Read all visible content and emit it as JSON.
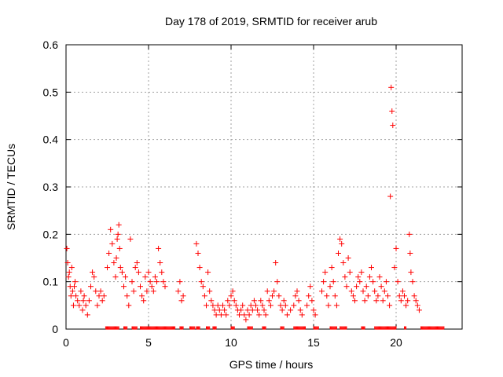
{
  "chart_data": {
    "type": "scatter",
    "title": "Day 178 of 2019, SRMTID for receiver arub",
    "xlabel": "GPS time / hours",
    "ylabel": "SRMTID / TECUs",
    "xlim": [
      0,
      24
    ],
    "ylim": [
      0,
      0.6
    ],
    "xticks": [
      0,
      5,
      10,
      15,
      20
    ],
    "xtick_labels": [
      "0",
      "5",
      "10",
      "15",
      "20"
    ],
    "yticks": [
      0,
      0.1,
      0.2,
      0.3,
      0.4,
      0.5,
      0.6
    ],
    "ytick_labels": [
      "0",
      "0.1",
      "0.2",
      "0.3",
      "0.4",
      "0.5",
      "0.6"
    ],
    "grid": true,
    "marker": "plus",
    "color": "#ff0000",
    "series": [
      {
        "name": "SRMTID",
        "points": [
          [
            0.05,
            0.17
          ],
          [
            0.1,
            0.14
          ],
          [
            0.15,
            0.11
          ],
          [
            0.2,
            0.12
          ],
          [
            0.25,
            0.09
          ],
          [
            0.3,
            0.07
          ],
          [
            0.35,
            0.13
          ],
          [
            0.4,
            0.08
          ],
          [
            0.45,
            0.05
          ],
          [
            0.5,
            0.09
          ],
          [
            0.55,
            0.1
          ],
          [
            0.6,
            0.07
          ],
          [
            0.7,
            0.06
          ],
          [
            0.8,
            0.05
          ],
          [
            0.9,
            0.08
          ],
          [
            1.0,
            0.04
          ],
          [
            1.05,
            0.06
          ],
          [
            1.1,
            0.07
          ],
          [
            1.2,
            0.05
          ],
          [
            1.3,
            0.03
          ],
          [
            1.4,
            0.06
          ],
          [
            1.5,
            0.09
          ],
          [
            1.6,
            0.12
          ],
          [
            1.7,
            0.11
          ],
          [
            1.8,
            0.08
          ],
          [
            1.9,
            0.05
          ],
          [
            2.0,
            0.07
          ],
          [
            2.1,
            0.08
          ],
          [
            2.2,
            0.06
          ],
          [
            2.3,
            0.07
          ],
          [
            2.5,
            0.13
          ],
          [
            2.6,
            0.16
          ],
          [
            2.7,
            0.21
          ],
          [
            2.8,
            0.18
          ],
          [
            2.9,
            0.14
          ],
          [
            3.0,
            0.11
          ],
          [
            3.05,
            0.15
          ],
          [
            3.1,
            0.19
          ],
          [
            3.15,
            0.2
          ],
          [
            3.2,
            0.22
          ],
          [
            3.25,
            0.17
          ],
          [
            3.3,
            0.13
          ],
          [
            3.4,
            0.12
          ],
          [
            3.5,
            0.09
          ],
          [
            3.6,
            0.11
          ],
          [
            3.7,
            0.07
          ],
          [
            3.8,
            0.05
          ],
          [
            3.9,
            0.19
          ],
          [
            4.0,
            0.1
          ],
          [
            4.1,
            0.08
          ],
          [
            4.2,
            0.13
          ],
          [
            4.3,
            0.14
          ],
          [
            4.4,
            0.12
          ],
          [
            4.5,
            0.09
          ],
          [
            4.6,
            0.07
          ],
          [
            4.7,
            0.06
          ],
          [
            4.8,
            0.11
          ],
          [
            4.9,
            0.08
          ],
          [
            5.0,
            0.12
          ],
          [
            5.1,
            0.1
          ],
          [
            5.2,
            0.09
          ],
          [
            5.3,
            0.08
          ],
          [
            5.4,
            0.11
          ],
          [
            5.5,
            0.1
          ],
          [
            5.6,
            0.17
          ],
          [
            5.7,
            0.14
          ],
          [
            5.8,
            0.12
          ],
          [
            5.9,
            0.1
          ],
          [
            6.0,
            0.09
          ],
          [
            6.8,
            0.08
          ],
          [
            6.9,
            0.1
          ],
          [
            7.0,
            0.06
          ],
          [
            7.1,
            0.07
          ],
          [
            7.9,
            0.18
          ],
          [
            8.0,
            0.16
          ],
          [
            8.1,
            0.13
          ],
          [
            8.2,
            0.1
          ],
          [
            8.3,
            0.09
          ],
          [
            8.4,
            0.07
          ],
          [
            8.5,
            0.05
          ],
          [
            8.6,
            0.12
          ],
          [
            8.7,
            0.08
          ],
          [
            8.8,
            0.06
          ],
          [
            8.9,
            0.05
          ],
          [
            9.0,
            0.04
          ],
          [
            9.1,
            0.03
          ],
          [
            9.2,
            0.05
          ],
          [
            9.3,
            0.04
          ],
          [
            9.4,
            0.03
          ],
          [
            9.5,
            0.05
          ],
          [
            9.6,
            0.04
          ],
          [
            9.7,
            0.03
          ],
          [
            9.8,
            0.06
          ],
          [
            9.9,
            0.05
          ],
          [
            10.0,
            0.07
          ],
          [
            10.1,
            0.08
          ],
          [
            10.2,
            0.06
          ],
          [
            10.3,
            0.05
          ],
          [
            10.4,
            0.04
          ],
          [
            10.5,
            0.03
          ],
          [
            10.6,
            0.04
          ],
          [
            10.7,
            0.05
          ],
          [
            10.8,
            0.03
          ],
          [
            10.9,
            0.02
          ],
          [
            11.0,
            0.04
          ],
          [
            11.1,
            0.03
          ],
          [
            11.2,
            0.05
          ],
          [
            11.3,
            0.04
          ],
          [
            11.4,
            0.06
          ],
          [
            11.5,
            0.05
          ],
          [
            11.6,
            0.04
          ],
          [
            11.7,
            0.03
          ],
          [
            11.8,
            0.06
          ],
          [
            11.9,
            0.05
          ],
          [
            12.0,
            0.04
          ],
          [
            12.1,
            0.03
          ],
          [
            12.2,
            0.08
          ],
          [
            12.3,
            0.06
          ],
          [
            12.4,
            0.05
          ],
          [
            12.5,
            0.07
          ],
          [
            12.6,
            0.08
          ],
          [
            12.7,
            0.14
          ],
          [
            12.8,
            0.1
          ],
          [
            12.9,
            0.07
          ],
          [
            13.0,
            0.05
          ],
          [
            13.1,
            0.04
          ],
          [
            13.2,
            0.06
          ],
          [
            13.3,
            0.05
          ],
          [
            13.4,
            0.03
          ],
          [
            13.6,
            0.04
          ],
          [
            13.8,
            0.05
          ],
          [
            13.9,
            0.07
          ],
          [
            14.0,
            0.08
          ],
          [
            14.1,
            0.06
          ],
          [
            14.2,
            0.04
          ],
          [
            14.3,
            0.03
          ],
          [
            14.6,
            0.05
          ],
          [
            14.7,
            0.07
          ],
          [
            14.8,
            0.09
          ],
          [
            14.9,
            0.06
          ],
          [
            15.0,
            0.04
          ],
          [
            15.1,
            0.03
          ],
          [
            15.5,
            0.08
          ],
          [
            15.6,
            0.1
          ],
          [
            15.7,
            0.12
          ],
          [
            15.8,
            0.07
          ],
          [
            15.9,
            0.05
          ],
          [
            16.0,
            0.09
          ],
          [
            16.1,
            0.13
          ],
          [
            16.2,
            0.1
          ],
          [
            16.3,
            0.07
          ],
          [
            16.4,
            0.05
          ],
          [
            16.5,
            0.16
          ],
          [
            16.6,
            0.19
          ],
          [
            16.7,
            0.18
          ],
          [
            16.8,
            0.14
          ],
          [
            16.9,
            0.11
          ],
          [
            17.0,
            0.09
          ],
          [
            17.1,
            0.15
          ],
          [
            17.2,
            0.12
          ],
          [
            17.3,
            0.08
          ],
          [
            17.4,
            0.07
          ],
          [
            17.5,
            0.06
          ],
          [
            17.6,
            0.09
          ],
          [
            17.7,
            0.11
          ],
          [
            17.8,
            0.1
          ],
          [
            17.9,
            0.12
          ],
          [
            18.0,
            0.08
          ],
          [
            18.1,
            0.06
          ],
          [
            18.2,
            0.09
          ],
          [
            18.3,
            0.07
          ],
          [
            18.4,
            0.11
          ],
          [
            18.5,
            0.13
          ],
          [
            18.6,
            0.1
          ],
          [
            18.7,
            0.08
          ],
          [
            18.8,
            0.06
          ],
          [
            18.9,
            0.07
          ],
          [
            19.0,
            0.11
          ],
          [
            19.1,
            0.09
          ],
          [
            19.2,
            0.06
          ],
          [
            19.3,
            0.08
          ],
          [
            19.4,
            0.1
          ],
          [
            19.5,
            0.07
          ],
          [
            19.6,
            0.05
          ],
          [
            19.65,
            0.28
          ],
          [
            19.7,
            0.51
          ],
          [
            19.75,
            0.46
          ],
          [
            19.8,
            0.43
          ],
          [
            19.9,
            0.13
          ],
          [
            20.0,
            0.17
          ],
          [
            20.1,
            0.1
          ],
          [
            20.2,
            0.07
          ],
          [
            20.3,
            0.06
          ],
          [
            20.4,
            0.08
          ],
          [
            20.5,
            0.07
          ],
          [
            20.6,
            0.05
          ],
          [
            20.7,
            0.06
          ],
          [
            20.8,
            0.2
          ],
          [
            20.85,
            0.16
          ],
          [
            20.9,
            0.12
          ],
          [
            21.0,
            0.1
          ],
          [
            21.1,
            0.07
          ],
          [
            21.2,
            0.06
          ],
          [
            21.3,
            0.05
          ],
          [
            21.4,
            0.04
          ]
        ],
        "zero_runs": [
          [
            2.4,
            3.2
          ],
          [
            3.5,
            3.7
          ],
          [
            4.0,
            4.3
          ],
          [
            4.5,
            6.6
          ],
          [
            6.9,
            7.1
          ],
          [
            7.5,
            7.8
          ],
          [
            7.9,
            8.1
          ],
          [
            8.5,
            8.7
          ],
          [
            8.9,
            9.1
          ],
          [
            10.0,
            10.2
          ],
          [
            11.0,
            11.3
          ],
          [
            11.9,
            12.1
          ],
          [
            13.0,
            13.2
          ],
          [
            13.8,
            14.5
          ],
          [
            15.0,
            15.3
          ],
          [
            16.0,
            16.4
          ],
          [
            16.6,
            17.0
          ],
          [
            17.9,
            18.1
          ],
          [
            18.7,
            20.0
          ],
          [
            20.5,
            20.6
          ],
          [
            21.5,
            22.9
          ]
        ]
      }
    ]
  }
}
